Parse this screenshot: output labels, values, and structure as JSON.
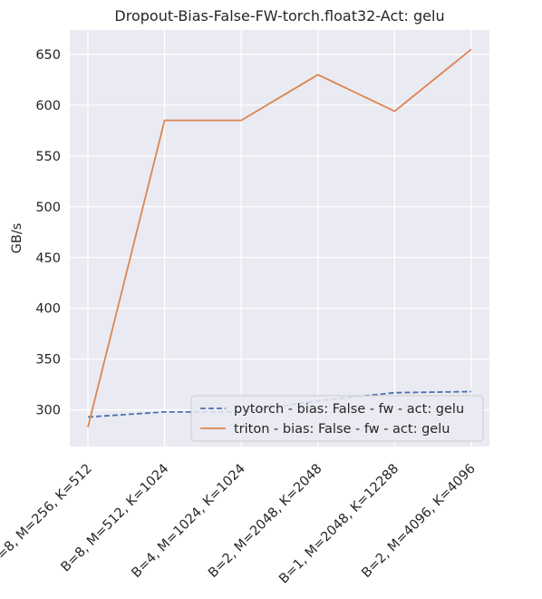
{
  "chart_data": {
    "type": "line",
    "title": "Dropout-Bias-False-FW-torch.float32-Act: gelu",
    "xlabel": "",
    "ylabel": "GB/s",
    "categories": [
      "B=8, M=256, K=512",
      "B=8, M=512, K=1024",
      "B=4, M=1024, K=1024",
      "B=2, M=2048, K=2048",
      "B=1, M=2048, K=12288",
      "B=2, M=4096, K=4096"
    ],
    "yticks": [
      300,
      350,
      400,
      450,
      500,
      550,
      600,
      650
    ],
    "ylim": [
      264,
      674
    ],
    "grid": true,
    "legend_position": "lower-right",
    "series": [
      {
        "name": "pytorch - bias: False - fw - act: gelu",
        "values": [
          293,
          298,
          298,
          309,
          317,
          318
        ],
        "color": "#4c72b0",
        "dash": "dashed"
      },
      {
        "name": "triton - bias: False - fw - act: gelu",
        "values": [
          283,
          585,
          585,
          630,
          594,
          655
        ],
        "color": "#dd8452",
        "dash": "solid"
      }
    ],
    "background": "#eaeaf2",
    "gridcolor": "#ffffff"
  }
}
